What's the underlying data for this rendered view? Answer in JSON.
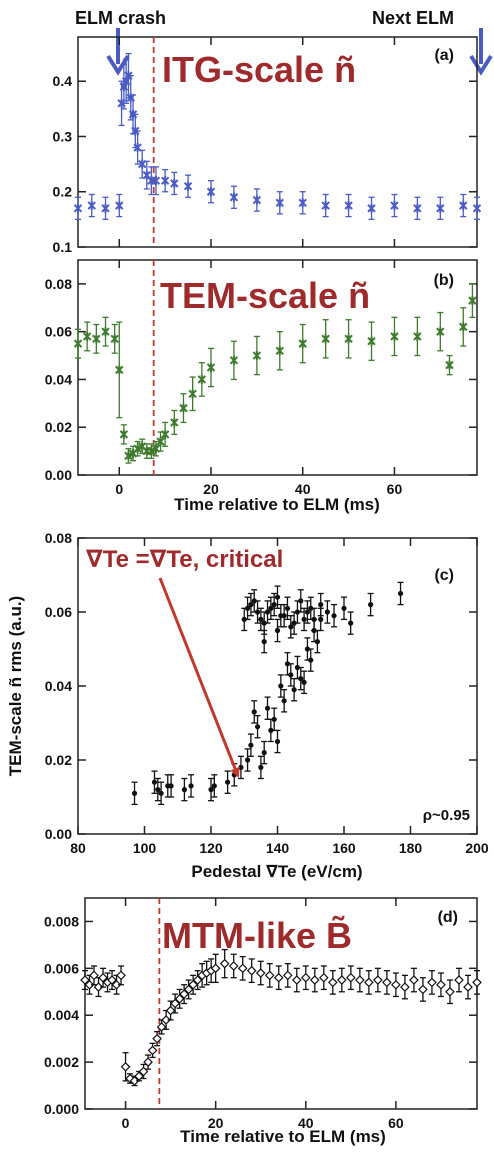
{
  "colors": {
    "itg": "#4a5bc4",
    "tem": "#3e7a2e",
    "title_red": "#9e2a2b",
    "dashed": "#c0392b",
    "mtm": "#111111",
    "scatter": "#111111"
  },
  "annotations": {
    "elm_crash": "ELM crash",
    "next_elm": "Next ELM",
    "critical_label": "∇Te =∇Te, critical",
    "rho": "ρ~0.95"
  },
  "chart_data": [
    {
      "panel": "(a)",
      "type": "scatter",
      "title": "ITG-scale ñ",
      "xlabel": "",
      "ylabel": "",
      "xlim": [
        -9,
        78
      ],
      "ylim": [
        0.1,
        0.48
      ],
      "yticks": [
        "0.1",
        "0.2",
        "0.3",
        "0.4"
      ],
      "marker": "x with error bars",
      "dashed_line_x": 7.5,
      "series": [
        {
          "x": [
            -9,
            -6,
            -3,
            0,
            0.5,
            1,
            1.5,
            2,
            2.5,
            3,
            3.5,
            4,
            5,
            6,
            7,
            8,
            10,
            12,
            15,
            20,
            25,
            30,
            35,
            40,
            45,
            50,
            55,
            60,
            65,
            70,
            75,
            78
          ],
          "y": [
            0.17,
            0.175,
            0.17,
            0.175,
            0.36,
            0.39,
            0.4,
            0.41,
            0.37,
            0.34,
            0.31,
            0.28,
            0.25,
            0.23,
            0.22,
            0.22,
            0.22,
            0.215,
            0.21,
            0.2,
            0.19,
            0.185,
            0.18,
            0.18,
            0.175,
            0.175,
            0.17,
            0.175,
            0.17,
            0.17,
            0.175,
            0.17
          ],
          "err": [
            0.02,
            0.02,
            0.02,
            0.02,
            0.04,
            0.04,
            0.04,
            0.04,
            0.04,
            0.035,
            0.03,
            0.03,
            0.025,
            0.025,
            0.025,
            0.025,
            0.02,
            0.02,
            0.02,
            0.02,
            0.02,
            0.02,
            0.02,
            0.02,
            0.02,
            0.02,
            0.02,
            0.02,
            0.02,
            0.02,
            0.02,
            0.02
          ]
        }
      ]
    },
    {
      "panel": "(b)",
      "type": "scatter",
      "title": "TEM-scale ñ",
      "xlabel": "Time relative to ELM (ms)",
      "ylabel": "",
      "xlim": [
        -9,
        78
      ],
      "ylim": [
        0.0,
        0.09
      ],
      "xticks": [
        "0",
        "20",
        "40",
        "60"
      ],
      "yticks": [
        "0.00",
        "0.02",
        "0.04",
        "0.06",
        "0.08"
      ],
      "marker": "x with error bars",
      "dashed_line_x": 7.5,
      "series": [
        {
          "x": [
            -9,
            -7,
            -5,
            -3,
            -1,
            0,
            1,
            2,
            3,
            4,
            5,
            6,
            7,
            8,
            9,
            10,
            12,
            14,
            16,
            18,
            20,
            25,
            30,
            35,
            40,
            45,
            50,
            55,
            60,
            65,
            70,
            72,
            75,
            77
          ],
          "y": [
            0.055,
            0.058,
            0.057,
            0.06,
            0.057,
            0.044,
            0.017,
            0.008,
            0.009,
            0.011,
            0.012,
            0.01,
            0.01,
            0.011,
            0.014,
            0.017,
            0.022,
            0.028,
            0.034,
            0.04,
            0.045,
            0.048,
            0.05,
            0.052,
            0.055,
            0.057,
            0.057,
            0.056,
            0.058,
            0.058,
            0.06,
            0.046,
            0.062,
            0.073
          ],
          "err": [
            0.006,
            0.006,
            0.006,
            0.006,
            0.006,
            0.02,
            0.004,
            0.003,
            0.003,
            0.003,
            0.003,
            0.003,
            0.003,
            0.003,
            0.004,
            0.005,
            0.005,
            0.006,
            0.007,
            0.007,
            0.008,
            0.008,
            0.008,
            0.008,
            0.008,
            0.008,
            0.008,
            0.008,
            0.008,
            0.008,
            0.008,
            0.004,
            0.008,
            0.007
          ]
        }
      ]
    },
    {
      "panel": "(c)",
      "type": "scatter",
      "title": "",
      "xlabel": "Pedestal ∇Te (eV/cm)",
      "ylabel": "TEM-scale ñ rms (a.u.)",
      "xlim": [
        80,
        200
      ],
      "ylim": [
        0.0,
        0.08
      ],
      "xticks": [
        "80",
        "100",
        "120",
        "140",
        "160",
        "180",
        "200"
      ],
      "yticks": [
        "0.00",
        "0.02",
        "0.04",
        "0.06",
        "0.08"
      ],
      "marker": "dot with error bars",
      "arrow_to": [
        125,
        0.014
      ],
      "series": [
        {
          "x": [
            97,
            103,
            104,
            105,
            107,
            108,
            112,
            114,
            120,
            121,
            125,
            127,
            129,
            131,
            132,
            133,
            134,
            135,
            136,
            137,
            138,
            139,
            140,
            141,
            142,
            143,
            144,
            145,
            146,
            147,
            148,
            149,
            150,
            151,
            152,
            153,
            155,
            157,
            160,
            162,
            168,
            177,
            130,
            132,
            134,
            136,
            138,
            140,
            142,
            131,
            133,
            135,
            137,
            139,
            141,
            143,
            145,
            147,
            149,
            151,
            153,
            136,
            140,
            144,
            146,
            148,
            150
          ],
          "y": [
            0.011,
            0.014,
            0.012,
            0.011,
            0.013,
            0.013,
            0.012,
            0.013,
            0.012,
            0.013,
            0.014,
            0.016,
            0.018,
            0.02,
            0.024,
            0.033,
            0.029,
            0.018,
            0.022,
            0.034,
            0.028,
            0.031,
            0.025,
            0.04,
            0.036,
            0.046,
            0.043,
            0.039,
            0.045,
            0.042,
            0.041,
            0.05,
            0.047,
            0.055,
            0.052,
            0.058,
            0.06,
            0.059,
            0.061,
            0.057,
            0.062,
            0.065,
            0.058,
            0.062,
            0.06,
            0.057,
            0.061,
            0.055,
            0.059,
            0.061,
            0.063,
            0.058,
            0.06,
            0.062,
            0.059,
            0.061,
            0.057,
            0.063,
            0.06,
            0.058,
            0.062,
            0.052,
            0.064,
            0.056,
            0.06,
            0.058,
            0.061
          ]
        }
      ]
    },
    {
      "panel": "(d)",
      "type": "scatter",
      "title": "MTM-like B̃",
      "xlabel": "Time relative to ELM (ms)",
      "ylabel": "",
      "xlim": [
        -9,
        78
      ],
      "ylim": [
        0.0,
        0.009
      ],
      "xticks": [
        "0",
        "20",
        "40",
        "60"
      ],
      "yticks": [
        "0.000",
        "0.002",
        "0.004",
        "0.006",
        "0.008"
      ],
      "marker": "open diamond with error bars",
      "dashed_line_x": 7.5,
      "series": [
        {
          "x": [
            -9,
            -8,
            -7,
            -6,
            -5,
            -4,
            -3,
            -2,
            -1,
            0,
            1,
            2,
            3,
            4,
            5,
            6,
            7,
            8,
            9,
            10,
            11,
            12,
            13,
            14,
            15,
            16,
            17,
            18,
            19,
            20,
            22,
            24,
            26,
            28,
            30,
            32,
            34,
            36,
            38,
            40,
            42,
            44,
            46,
            48,
            50,
            52,
            54,
            56,
            58,
            60,
            62,
            64,
            66,
            68,
            70,
            72,
            74,
            76,
            78
          ],
          "y": [
            0.0055,
            0.0053,
            0.0057,
            0.0052,
            0.0056,
            0.0054,
            0.0055,
            0.0053,
            0.0057,
            0.0018,
            0.0013,
            0.0012,
            0.0014,
            0.0016,
            0.002,
            0.0025,
            0.003,
            0.0035,
            0.0038,
            0.0042,
            0.0045,
            0.0047,
            0.0049,
            0.0051,
            0.0053,
            0.0055,
            0.0057,
            0.0058,
            0.0059,
            0.006,
            0.0062,
            0.0061,
            0.006,
            0.0059,
            0.0058,
            0.0057,
            0.0056,
            0.0057,
            0.0055,
            0.0056,
            0.0055,
            0.0056,
            0.0054,
            0.0055,
            0.0056,
            0.0055,
            0.0054,
            0.0055,
            0.0054,
            0.0053,
            0.0052,
            0.0055,
            0.0051,
            0.0054,
            0.0053,
            0.005,
            0.0055,
            0.0052,
            0.0054
          ],
          "err": [
            0.0004,
            0.0004,
            0.0004,
            0.0004,
            0.0004,
            0.0004,
            0.0004,
            0.0004,
            0.0004,
            0.0006,
            0.0002,
            0.0002,
            0.0002,
            0.0003,
            0.0003,
            0.0003,
            0.0003,
            0.0003,
            0.0004,
            0.0004,
            0.0004,
            0.0004,
            0.0004,
            0.0004,
            0.0004,
            0.0004,
            0.0005,
            0.0005,
            0.0005,
            0.0006,
            0.0006,
            0.0005,
            0.0005,
            0.0005,
            0.0005,
            0.0005,
            0.0005,
            0.0005,
            0.0005,
            0.0005,
            0.0005,
            0.0005,
            0.0005,
            0.0005,
            0.0005,
            0.0005,
            0.0005,
            0.0005,
            0.0005,
            0.0005,
            0.0005,
            0.0005,
            0.0005,
            0.0005,
            0.0005,
            0.0005,
            0.0005,
            0.0005,
            0.0005
          ]
        }
      ]
    }
  ]
}
